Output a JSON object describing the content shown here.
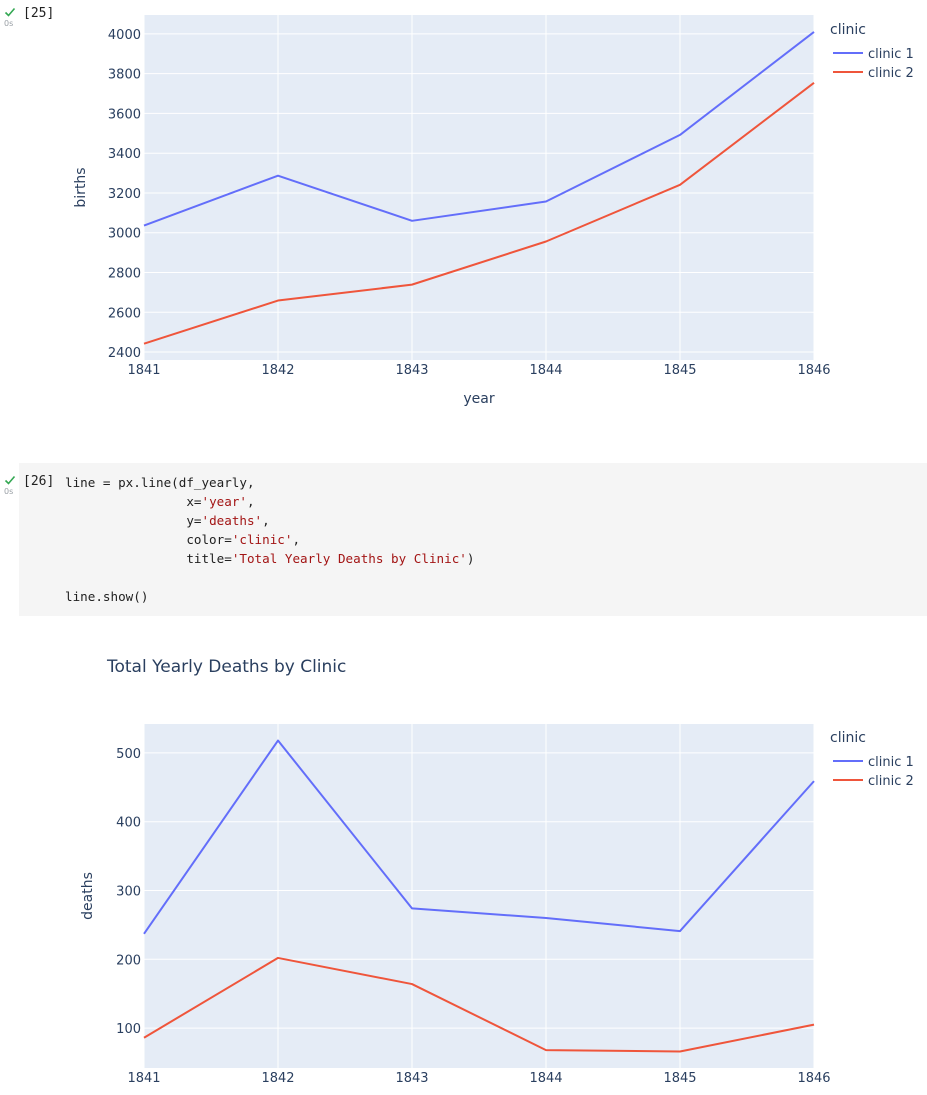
{
  "cells": [
    {
      "execution_count": "[25]",
      "status": "success",
      "runtime": "0s"
    },
    {
      "execution_count": "[26]",
      "status": "success",
      "runtime": "0s",
      "code_lines": [
        {
          "parts": [
            {
              "t": "line = px.line(df_yearly,",
              "s": false
            }
          ]
        },
        {
          "parts": [
            {
              "t": "                x=",
              "s": false
            },
            {
              "t": "'year'",
              "s": true
            },
            {
              "t": ",",
              "s": false
            }
          ]
        },
        {
          "parts": [
            {
              "t": "                y=",
              "s": false
            },
            {
              "t": "'deaths'",
              "s": true
            },
            {
              "t": ",",
              "s": false
            }
          ]
        },
        {
          "parts": [
            {
              "t": "                color=",
              "s": false
            },
            {
              "t": "'clinic'",
              "s": true
            },
            {
              "t": ",",
              "s": false
            }
          ]
        },
        {
          "parts": [
            {
              "t": "                title=",
              "s": false
            },
            {
              "t": "'Total Yearly Deaths by Clinic'",
              "s": true
            },
            {
              "t": ")",
              "s": false
            }
          ]
        },
        {
          "parts": [
            {
              "t": "",
              "s": false
            }
          ]
        },
        {
          "parts": [
            {
              "t": "line.show()",
              "s": false
            }
          ]
        }
      ]
    }
  ],
  "colors": {
    "clinic_1": "#636efa",
    "clinic_2": "#ef553b",
    "plot_bg": "#e5ecf6",
    "grid": "#ffffff",
    "axis_text": "#2a3f5f",
    "success": "#34a853",
    "string": "#a31515"
  },
  "chart_data": [
    {
      "type": "line",
      "title": "",
      "xlabel": "year",
      "ylabel": "births",
      "x": [
        1841,
        1842,
        1843,
        1844,
        1845,
        1846
      ],
      "xticks": [
        "1841",
        "1842",
        "1843",
        "1844",
        "1845",
        "1846"
      ],
      "yticks": [
        "2400",
        "2600",
        "2800",
        "3000",
        "3200",
        "3400",
        "3600",
        "3800",
        "4000"
      ],
      "ylim": [
        2360,
        4095
      ],
      "legend_title": "clinic",
      "legend_position": "right",
      "grid": true,
      "series": [
        {
          "name": "clinic 1",
          "values": [
            3036,
            3287,
            3060,
            3157,
            3492,
            4010
          ]
        },
        {
          "name": "clinic 2",
          "values": [
            2442,
            2659,
            2739,
            2956,
            3241,
            3754
          ]
        }
      ]
    },
    {
      "type": "line",
      "title": "Total Yearly Deaths by Clinic",
      "xlabel": "year",
      "ylabel": "deaths",
      "x": [
        1841,
        1842,
        1843,
        1844,
        1845,
        1846
      ],
      "xticks": [
        "1841",
        "1842",
        "1843",
        "1844",
        "1845",
        "1846"
      ],
      "yticks": [
        "100",
        "200",
        "300",
        "400",
        "500"
      ],
      "ylim": [
        42,
        542
      ],
      "legend_title": "clinic",
      "legend_position": "right",
      "grid": true,
      "series": [
        {
          "name": "clinic 1",
          "values": [
            237,
            518,
            274,
            260,
            241,
            459
          ]
        },
        {
          "name": "clinic 2",
          "values": [
            86,
            202,
            164,
            68,
            66,
            105
          ]
        }
      ]
    }
  ]
}
